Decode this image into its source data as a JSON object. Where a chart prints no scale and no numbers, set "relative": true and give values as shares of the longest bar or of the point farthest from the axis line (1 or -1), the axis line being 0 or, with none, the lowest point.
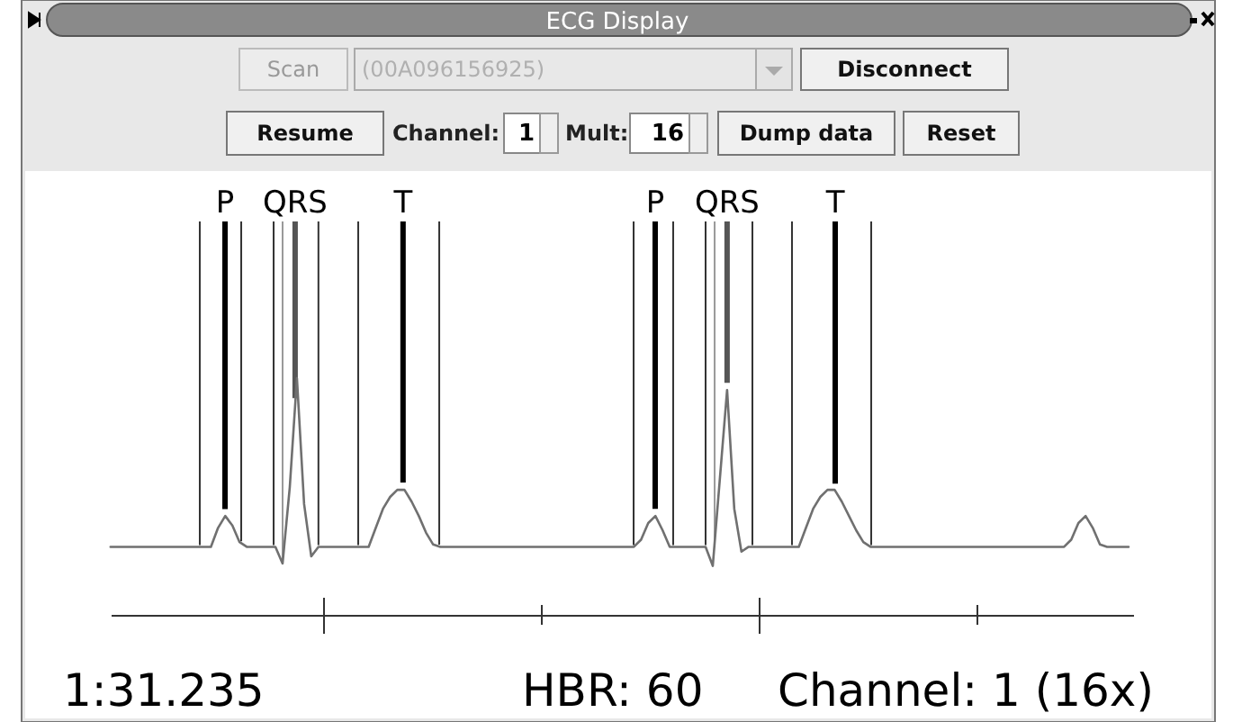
{
  "chart_data": {
    "type": "line",
    "title": "ECG Display",
    "relative": true,
    "categories": [
      null,
      null,
      null,
      null,
      null,
      null,
      null,
      null,
      null,
      null,
      null,
      null,
      null,
      null,
      null,
      null,
      null,
      null,
      null,
      null,
      null,
      null,
      null,
      null,
      null,
      null,
      null,
      null,
      null,
      null,
      null,
      null,
      null,
      null,
      null,
      null,
      null,
      null,
      null,
      null,
      null,
      null,
      null,
      null,
      null,
      null,
      null,
      null,
      null,
      null,
      null,
      null,
      null,
      null,
      null,
      null,
      null,
      null,
      null,
      null,
      null,
      null,
      null,
      null,
      null,
      null,
      null,
      null,
      null,
      null,
      null,
      null,
      null,
      null,
      null,
      null,
      null,
      null,
      null,
      null,
      null,
      null,
      null,
      null,
      null,
      null,
      null,
      null,
      null,
      null,
      null,
      null,
      null,
      null,
      null,
      null,
      null,
      null,
      null,
      null,
      null,
      null,
      null,
      null,
      null,
      null,
      null,
      null,
      null,
      null,
      null,
      null,
      null,
      null,
      null,
      null,
      null,
      null,
      null,
      null,
      null,
      null,
      null,
      null,
      null,
      null,
      null,
      null,
      null,
      null,
      null,
      null,
      null,
      null,
      null,
      null,
      null,
      null,
      null,
      null,
      null,
      null,
      null
    ],
    "series": [
      {
        "color": "#707070",
        "values": [
          0.29,
          0.29,
          0.29,
          0.29,
          0.29,
          0.29,
          0.29,
          0.29,
          0.29,
          0.29,
          0.29,
          0.29,
          0.29,
          0.29,
          0.29,
          0.37,
          0.42,
          0.38,
          0.31,
          0.29,
          0.29,
          0.29,
          0.29,
          0.29,
          0.22,
          0.54,
          1.0,
          0.47,
          0.25,
          0.29,
          0.29,
          0.29,
          0.29,
          0.29,
          0.29,
          0.29,
          0.29,
          0.37,
          0.45,
          0.5,
          0.53,
          0.53,
          0.48,
          0.42,
          0.35,
          0.3,
          0.29,
          0.29,
          0.29,
          0.29,
          0.29,
          0.29,
          0.29,
          0.29,
          0.29,
          0.29,
          0.29,
          0.29,
          0.29,
          0.29,
          0.29,
          0.29,
          0.29,
          0.29,
          0.29,
          0.29,
          0.29,
          0.29,
          0.29,
          0.29,
          0.29,
          0.29,
          0.29,
          0.29,
          0.32,
          0.39,
          0.42,
          0.36,
          0.29,
          0.29,
          0.29,
          0.29,
          0.29,
          0.29,
          0.21,
          0.58,
          0.95,
          0.45,
          0.27,
          0.29,
          0.29,
          0.29,
          0.29,
          0.29,
          0.29,
          0.29,
          0.29,
          0.37,
          0.45,
          0.5,
          0.53,
          0.53,
          0.48,
          0.42,
          0.36,
          0.31,
          0.29,
          0.29,
          0.29,
          0.29,
          0.29,
          0.29,
          0.29,
          0.29,
          0.29,
          0.29,
          0.29,
          0.29,
          0.29,
          0.29,
          0.29,
          0.29,
          0.29,
          0.29,
          0.29,
          0.29,
          0.29,
          0.29,
          0.29,
          0.29,
          0.29,
          0.29,
          0.29,
          0.29,
          0.32,
          0.39,
          0.42,
          0.37,
          0.3,
          0.29,
          0.29,
          0.29,
          0.29
        ]
      }
    ],
    "annotations": [
      "Scan",
      "(00A096156925)",
      "Disconnect",
      "Resume",
      "Channel:",
      "1",
      "Mult:",
      "16",
      "Dump data",
      "Reset",
      "1:31.235",
      "HBR: 60",
      "Channel: 1 (16x)",
      "P",
      "QRS",
      "T",
      "P",
      "QRS",
      "T"
    ]
  }
}
